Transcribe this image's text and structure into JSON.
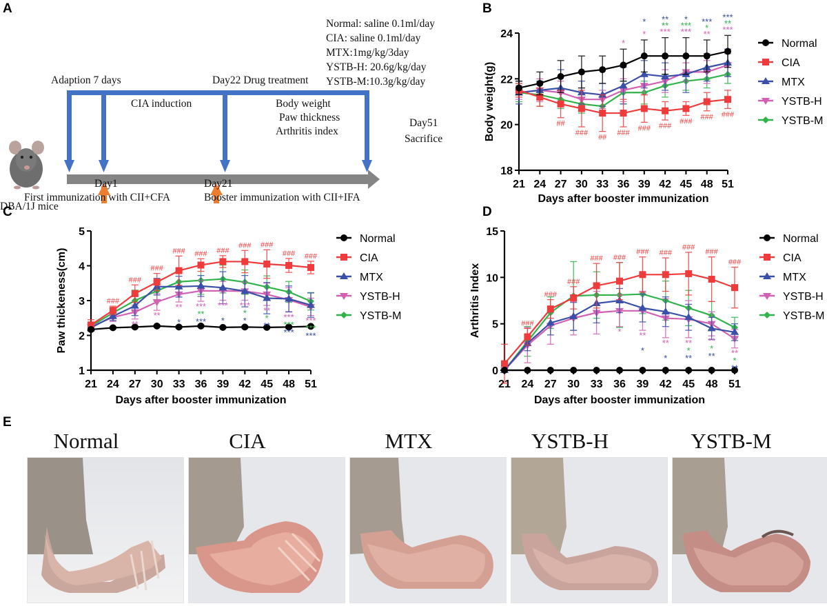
{
  "panels": {
    "A": {
      "letter": "A",
      "mouse_label": "DBA/1J mice",
      "adaption": "Adaption 7 days",
      "induction": "CIA induction",
      "drug_treatment": "Day22 Drug treatment",
      "measures": [
        "Body weight",
        "Paw thickness",
        "Arthritis index"
      ],
      "end_day": "Day51",
      "end_event": "Sacrifice",
      "day1": "Day1",
      "day1_event": "First immunization with CII+CFA",
      "day21": "Day21",
      "day21_event": "Booster immunization with CII+IFA",
      "dosing": [
        "Normal: saline 0.1ml/day",
        "CIA: saline 0.1ml/day",
        "MTX:1mg/kg/3day",
        "YSTB-H: 20.6g/kg/day",
        "YSTB-M:10.3g/kg/day"
      ],
      "colors": {
        "blue_arrow": "#4472c4",
        "orange_arrow": "#ed7d31",
        "timeline": "#808080"
      }
    },
    "B": {
      "letter": "B"
    },
    "C": {
      "letter": "C"
    },
    "D": {
      "letter": "D"
    },
    "E": {
      "letter": "E",
      "photos": [
        {
          "label": "Normal",
          "swelling": "none"
        },
        {
          "label": "CIA",
          "swelling": "severe"
        },
        {
          "label": "MTX",
          "swelling": "mild"
        },
        {
          "label": "YSTB-H",
          "swelling": "mild"
        },
        {
          "label": "YSTB-M",
          "swelling": "mild"
        }
      ]
    }
  },
  "series_colors": {
    "Normal": "#000000",
    "CIA": "#ee3b3b",
    "MTX": "#3a4fa8",
    "YSTB-H": "#d261b4",
    "YSTB-M": "#2fb34a"
  },
  "chart_data": [
    {
      "id": "B",
      "type": "line",
      "title": "",
      "xlabel": "Days after booster immunization",
      "ylabel": "Body weight(g)",
      "x": [
        21,
        24,
        27,
        30,
        33,
        36,
        39,
        42,
        45,
        48,
        51
      ],
      "ylim": [
        18,
        24
      ],
      "yticks": [
        18,
        20,
        22,
        24
      ],
      "legend": "right",
      "series": [
        {
          "name": "Normal",
          "marker": "circle",
          "values": [
            21.6,
            21.8,
            22.1,
            22.3,
            22.4,
            22.6,
            23.0,
            23.0,
            23.0,
            23.0,
            23.2
          ],
          "err": [
            0.3,
            0.5,
            0.7,
            0.7,
            0.6,
            0.7,
            0.7,
            0.8,
            0.8,
            0.7,
            0.7
          ]
        },
        {
          "name": "CIA",
          "marker": "square",
          "values": [
            21.5,
            21.2,
            20.9,
            20.7,
            20.5,
            20.5,
            20.7,
            20.6,
            20.7,
            21.0,
            21.1
          ],
          "err": [
            0.3,
            0.4,
            0.6,
            0.8,
            0.8,
            0.6,
            0.6,
            0.4,
            0.3,
            0.4,
            0.4
          ],
          "annotations": [
            "",
            "",
            "##",
            "###",
            "##",
            "###",
            "###",
            "###",
            "###",
            "###",
            "###"
          ]
        },
        {
          "name": "MTX",
          "marker": "triangle-up",
          "values": [
            21.4,
            21.5,
            21.6,
            21.4,
            21.3,
            21.7,
            22.2,
            22.1,
            22.2,
            22.5,
            22.7
          ],
          "err": [
            0.5,
            0.4,
            0.8,
            0.5,
            0.5,
            0.8,
            0.6,
            0.6,
            0.8,
            0.6,
            0.6
          ],
          "annotations": [
            "",
            "",
            "",
            "",
            "",
            "",
            "*",
            "**",
            "*",
            "***",
            "***"
          ]
        },
        {
          "name": "YSTB-H",
          "marker": "triangle-down",
          "values": [
            21.4,
            21.5,
            21.4,
            21.1,
            21.1,
            21.5,
            21.7,
            21.9,
            22.3,
            22.3,
            22.6
          ],
          "err": [
            0.3,
            0.5,
            0.5,
            0.5,
            0.4,
            0.5,
            0.4,
            0.5,
            0.4,
            0.5,
            0.5
          ],
          "annotations": [
            "",
            "",
            "",
            "",
            "",
            "*",
            "*",
            "***",
            "***",
            "**",
            "***"
          ]
        },
        {
          "name": "YSTB-M",
          "marker": "diamond",
          "values": [
            21.4,
            21.3,
            21.1,
            20.9,
            20.8,
            21.4,
            21.4,
            21.7,
            21.9,
            22.0,
            22.2
          ],
          "err": [
            0.4,
            0.5,
            0.4,
            0.4,
            0.4,
            0.5,
            0.5,
            0.5,
            0.4,
            0.4,
            0.4
          ],
          "annotations": [
            "",
            "",
            "",
            "",
            "",
            "",
            "",
            "**",
            "***",
            "*",
            "**"
          ]
        }
      ]
    },
    {
      "id": "C",
      "type": "line",
      "title": "",
      "xlabel": "Days after booster immunization",
      "ylabel": "Paw thickeness(cm)",
      "x": [
        21,
        24,
        27,
        30,
        33,
        36,
        39,
        42,
        45,
        48,
        51
      ],
      "ylim": [
        1,
        5
      ],
      "yticks": [
        1,
        2,
        3,
        4,
        5
      ],
      "legend": "right",
      "series": [
        {
          "name": "Normal",
          "marker": "circle",
          "values": [
            2.17,
            2.22,
            2.24,
            2.27,
            2.24,
            2.27,
            2.23,
            2.24,
            2.23,
            2.24,
            2.26
          ],
          "err": [
            0.03,
            0.03,
            0.03,
            0.03,
            0.03,
            0.03,
            0.03,
            0.03,
            0.03,
            0.03,
            0.03
          ]
        },
        {
          "name": "CIA",
          "marker": "square",
          "values": [
            2.3,
            2.72,
            3.2,
            3.53,
            3.86,
            4.02,
            4.12,
            4.12,
            4.05,
            4.01,
            3.95
          ],
          "err": [
            0.15,
            0.12,
            0.25,
            0.25,
            0.42,
            0.18,
            0.17,
            0.32,
            0.41,
            0.2,
            0.18
          ],
          "annotations": [
            "",
            "###",
            "###",
            "###",
            "###",
            "###",
            "###",
            "###",
            "###",
            "###",
            "###"
          ]
        },
        {
          "name": "MTX",
          "marker": "triangle-up",
          "values": [
            2.22,
            2.55,
            2.85,
            3.4,
            3.4,
            3.42,
            3.37,
            3.27,
            3.07,
            3.05,
            2.87
          ],
          "err": [
            0.1,
            0.12,
            0.28,
            0.24,
            0.3,
            0.3,
            0.46,
            0.45,
            0.45,
            0.37,
            0.35
          ],
          "annotations": [
            "",
            "",
            "",
            "",
            "*",
            "***",
            "*",
            "*",
            "**",
            "***",
            "***"
          ]
        },
        {
          "name": "YSTB-H",
          "marker": "triangle-down",
          "values": [
            2.25,
            2.52,
            2.67,
            2.96,
            3.18,
            3.28,
            3.28,
            3.27,
            3.18,
            3.02,
            2.82
          ],
          "err": [
            0.1,
            0.12,
            0.2,
            0.24,
            0.22,
            0.3,
            0.27,
            0.26,
            0.32,
            0.35,
            0.25
          ],
          "annotations": [
            "",
            "",
            "**",
            "**",
            "**",
            "***",
            "***",
            "***",
            "**",
            "***",
            "***"
          ]
        },
        {
          "name": "YSTB-M",
          "marker": "diamond",
          "values": [
            2.26,
            2.65,
            3.0,
            3.28,
            3.54,
            3.58,
            3.62,
            3.53,
            3.39,
            3.25,
            2.98
          ],
          "err": [
            0.1,
            0.12,
            0.3,
            0.3,
            0.3,
            0.4,
            0.4,
            0.35,
            0.32,
            0.3,
            0.25
          ],
          "annotations": [
            "",
            "",
            "",
            "",
            "",
            "**",
            "",
            "*",
            "*",
            "***",
            "***"
          ]
        }
      ]
    },
    {
      "id": "D",
      "type": "line",
      "title": "",
      "xlabel": "Days after booster immunization",
      "ylabel": "Arthritis Index",
      "x": [
        21,
        24,
        27,
        30,
        33,
        36,
        39,
        42,
        45,
        48,
        51
      ],
      "ylim": [
        0,
        15
      ],
      "yticks": [
        0,
        5,
        10,
        15
      ],
      "legend": "right",
      "series": [
        {
          "name": "Normal",
          "marker": "circle",
          "values": [
            0,
            0,
            0,
            0,
            0,
            0,
            0,
            0,
            0,
            0,
            0
          ],
          "err": [
            0,
            0,
            0,
            0,
            0,
            0,
            0,
            0,
            0,
            0,
            0
          ]
        },
        {
          "name": "CIA",
          "marker": "square",
          "values": [
            0.7,
            3.6,
            6.6,
            7.8,
            9.1,
            9.6,
            10.3,
            10.3,
            10.4,
            9.8,
            8.9
          ],
          "err": [
            2.1,
            0.9,
            1.0,
            1.2,
            2.4,
            2.0,
            1.9,
            1.8,
            2.3,
            2.4,
            2.2
          ],
          "annotations": [
            "",
            "###",
            "###",
            "###",
            "###",
            "###",
            "###",
            "###",
            "###",
            "###",
            "###"
          ]
        },
        {
          "name": "MTX",
          "marker": "triangle-up",
          "values": [
            0,
            2.9,
            5.1,
            5.8,
            7.2,
            7.5,
            6.7,
            6.3,
            5.7,
            4.5,
            4.1
          ],
          "err": [
            0,
            0.8,
            1.3,
            1.5,
            2.1,
            1.3,
            1.5,
            1.6,
            1.4,
            1.2,
            0.9
          ],
          "annotations": [
            "",
            "",
            "",
            "",
            "",
            "",
            "*",
            "*",
            "**",
            "**",
            "**"
          ]
        },
        {
          "name": "YSTB-H",
          "marker": "triangle-down",
          "values": [
            0,
            2.7,
            4.8,
            5.6,
            6.2,
            6.4,
            6.4,
            5.6,
            5.5,
            5.0,
            3.4
          ],
          "err": [
            0,
            1.9,
            2.0,
            1.8,
            2.3,
            1.7,
            2.1,
            2.1,
            2.0,
            1.3,
            1.0
          ],
          "annotations": [
            "",
            "",
            "",
            "",
            "",
            "*",
            "**",
            "**",
            "**",
            "**",
            "**"
          ]
        },
        {
          "name": "YSTB-M",
          "marker": "diamond",
          "values": [
            0,
            3.1,
            6.2,
            8.0,
            8.1,
            8.1,
            8.2,
            7.5,
            6.7,
            5.9,
            4.6
          ],
          "err": [
            0,
            1.6,
            1.7,
            3.7,
            2.5,
            3.5,
            2.1,
            2.1,
            1.9,
            1.5,
            1.1
          ],
          "annotations": [
            "",
            "",
            "",
            "",
            "",
            "",
            "",
            "",
            "*",
            "*",
            "*"
          ]
        }
      ]
    }
  ]
}
